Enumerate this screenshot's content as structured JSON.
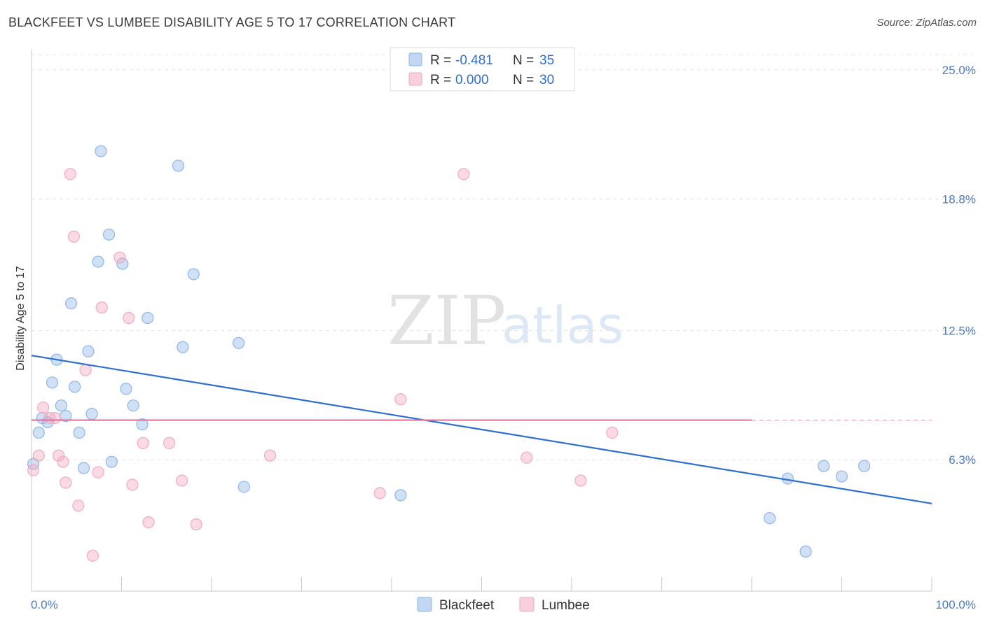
{
  "title": "BLACKFEET VS LUMBEE DISABILITY AGE 5 TO 17 CORRELATION CHART",
  "source": "Source: ZipAtlas.com",
  "watermark": {
    "zip": "ZIP",
    "atlas": "atlas"
  },
  "chart_data": {
    "type": "scatter",
    "xlabel": "",
    "ylabel": "Disability Age 5 to 17",
    "xlim": [
      0,
      100
    ],
    "ylim": [
      0,
      26
    ],
    "x_tick_labels": [
      "0.0%",
      "100.0%"
    ],
    "y_ticks": [
      {
        "value": 6.3,
        "label": "6.3%"
      },
      {
        "value": 12.5,
        "label": "12.5%"
      },
      {
        "value": 18.8,
        "label": "18.8%"
      },
      {
        "value": 25.0,
        "label": "25.0%"
      }
    ],
    "grid": "horizontal dashed",
    "legend_placement": "top-center",
    "legend": [
      {
        "name": "Blackfeet",
        "r_label": "R = ",
        "r_value": "-0.481",
        "n_label": "N = ",
        "n_value": "35",
        "color": "#8fb6e8"
      },
      {
        "name": "Lumbee",
        "r_label": "R = ",
        "r_value": "0.000",
        "n_label": "N = ",
        "n_value": "30",
        "color": "#f2a9c0"
      }
    ],
    "series": [
      {
        "name": "Blackfeet",
        "color": "#8fb6e8",
        "trend_color": "#2f6fd1",
        "trend": {
          "x0": 0,
          "y0": 11.3,
          "x1": 100,
          "y1": 4.2
        },
        "points": [
          [
            0.2,
            6.1
          ],
          [
            0.8,
            7.6
          ],
          [
            1.2,
            8.3
          ],
          [
            1.8,
            8.1
          ],
          [
            2.3,
            10.0
          ],
          [
            2.8,
            11.1
          ],
          [
            3.3,
            8.9
          ],
          [
            3.8,
            8.4
          ],
          [
            4.4,
            13.8
          ],
          [
            4.8,
            9.8
          ],
          [
            5.3,
            7.6
          ],
          [
            5.8,
            5.9
          ],
          [
            6.3,
            11.5
          ],
          [
            6.7,
            8.5
          ],
          [
            7.4,
            15.8
          ],
          [
            7.7,
            21.1
          ],
          [
            8.6,
            17.1
          ],
          [
            8.9,
            6.2
          ],
          [
            10.1,
            15.7
          ],
          [
            10.5,
            9.7
          ],
          [
            11.3,
            8.9
          ],
          [
            12.3,
            8.0
          ],
          [
            12.9,
            13.1
          ],
          [
            16.3,
            20.4
          ],
          [
            16.8,
            11.7
          ],
          [
            18.0,
            15.2
          ],
          [
            23.0,
            11.9
          ],
          [
            23.6,
            5.0
          ],
          [
            41.0,
            4.6
          ],
          [
            82.0,
            3.5
          ],
          [
            84.0,
            5.4
          ],
          [
            86.0,
            1.9
          ],
          [
            88.0,
            6.0
          ],
          [
            90.0,
            5.5
          ],
          [
            92.5,
            6.0
          ]
        ]
      },
      {
        "name": "Lumbee",
        "color": "#f2a9c0",
        "trend_color": "#e0739a",
        "trend": {
          "x0": 0,
          "y0": 8.2,
          "x1": 80,
          "y1": 8.2,
          "dash_to": 100
        },
        "points": [
          [
            0.2,
            5.8
          ],
          [
            0.8,
            6.5
          ],
          [
            1.3,
            8.8
          ],
          [
            2.0,
            8.3
          ],
          [
            2.6,
            8.3
          ],
          [
            3.0,
            6.5
          ],
          [
            3.5,
            6.2
          ],
          [
            3.8,
            5.2
          ],
          [
            4.3,
            20.0
          ],
          [
            4.7,
            17.0
          ],
          [
            5.2,
            4.1
          ],
          [
            6.0,
            10.6
          ],
          [
            6.8,
            1.7
          ],
          [
            7.4,
            5.7
          ],
          [
            7.8,
            13.6
          ],
          [
            9.8,
            16.0
          ],
          [
            10.8,
            13.1
          ],
          [
            11.2,
            5.1
          ],
          [
            12.4,
            7.1
          ],
          [
            13.0,
            3.3
          ],
          [
            15.3,
            7.1
          ],
          [
            16.7,
            5.3
          ],
          [
            18.3,
            3.2
          ],
          [
            26.5,
            6.5
          ],
          [
            38.7,
            4.7
          ],
          [
            41.0,
            9.2
          ],
          [
            48.0,
            20.0
          ],
          [
            55.0,
            6.4
          ],
          [
            61.0,
            5.3
          ],
          [
            64.5,
            7.6
          ]
        ]
      }
    ]
  }
}
